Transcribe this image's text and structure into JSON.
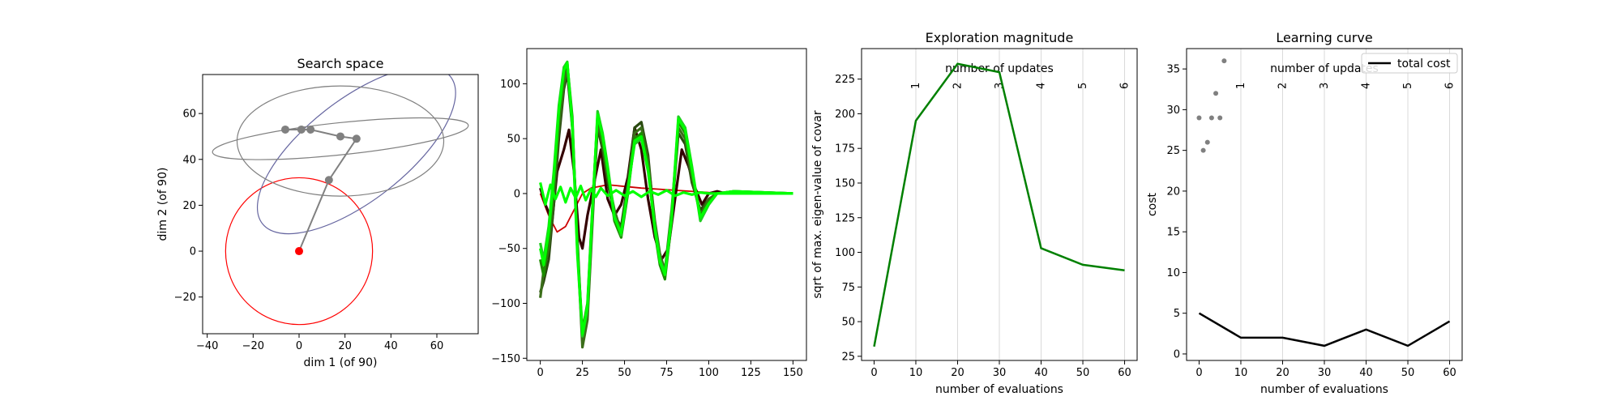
{
  "chart_data": [
    {
      "type": "scatter",
      "title": "Search space",
      "xlabel": "dim 1 (of 90)",
      "ylabel": "dim 2 (of 90)",
      "xlim": [
        -42,
        78
      ],
      "ylim": [
        -36,
        77
      ],
      "xticks": [
        -40,
        -20,
        0,
        20,
        40,
        60
      ],
      "yticks": [
        -20,
        0,
        20,
        40,
        60
      ],
      "initial_mean": [
        0,
        0
      ],
      "mean_path": [
        [
          0,
          0
        ],
        [
          13,
          31
        ],
        [
          25,
          49
        ],
        [
          18,
          50
        ],
        [
          5,
          53
        ],
        [
          1,
          53
        ],
        [
          -6,
          53
        ]
      ],
      "covariance_ellipses": [
        {
          "center": [
            0,
            0
          ],
          "rx": 32,
          "ry": 32,
          "angle": 0,
          "color": "#ff0000"
        },
        {
          "center": [
            25,
            44
          ],
          "rx": 52,
          "ry": 22,
          "angle": 38,
          "color": "#6666a0"
        },
        {
          "center": [
            18,
            48
          ],
          "rx": 45,
          "ry": 24,
          "angle": 0,
          "color": "#808080"
        },
        {
          "center": [
            18,
            49
          ],
          "rx": 56,
          "ry": 7,
          "angle": 6,
          "color": "#808080"
        }
      ],
      "colors": {
        "initial": "#ff0000",
        "updates": "#808080",
        "first_update": "#6666a0"
      }
    },
    {
      "type": "line",
      "title": "",
      "xlim": [
        -8,
        158
      ],
      "ylim": [
        -152,
        132
      ],
      "xticks": [
        0,
        25,
        50,
        75,
        100,
        125,
        150
      ],
      "yticks": [
        -150,
        -100,
        -50,
        0,
        50,
        100
      ],
      "x_range": [
        0,
        150
      ],
      "series_colors": [
        "#cc0000",
        "#330000",
        "#2a4a10",
        "#3b6e1a",
        "#1c8c00",
        "#22cc22",
        "#00ff00"
      ],
      "series": [
        {
          "x": [
            0,
            5,
            10,
            15,
            20,
            25,
            30,
            40,
            60,
            80,
            100,
            150
          ],
          "values": [
            0,
            -20,
            -35,
            -30,
            -15,
            0,
            5,
            8,
            5,
            3,
            1,
            0
          ]
        },
        {
          "x": [
            0,
            3,
            7,
            10,
            14,
            17,
            20,
            23,
            25,
            28,
            32,
            36,
            40,
            44,
            48,
            52,
            56,
            60,
            64,
            68,
            72,
            76,
            80,
            84,
            88,
            92,
            96,
            100,
            105,
            110,
            150
          ],
          "values": [
            5,
            -10,
            -25,
            20,
            40,
            58,
            20,
            -40,
            -50,
            -20,
            10,
            40,
            -5,
            -20,
            -10,
            15,
            60,
            40,
            -5,
            -40,
            -60,
            -50,
            -5,
            40,
            25,
            5,
            -10,
            0,
            2,
            0,
            0
          ]
        },
        {
          "x": [
            0,
            2,
            5,
            8,
            11,
            14,
            16,
            19,
            22,
            25,
            28,
            31,
            34,
            37,
            40,
            44,
            48,
            52,
            56,
            60,
            64,
            68,
            71,
            74,
            78,
            82,
            86,
            90,
            95,
            100,
            105,
            115,
            150
          ],
          "values": [
            -90,
            -80,
            -60,
            -10,
            50,
            95,
            110,
            60,
            -40,
            -135,
            -110,
            -20,
            60,
            40,
            10,
            -20,
            -30,
            10,
            60,
            65,
            35,
            -30,
            -60,
            -75,
            -20,
            55,
            45,
            10,
            -15,
            -5,
            0,
            2,
            0
          ]
        },
        {
          "x": [
            0,
            2,
            5,
            8,
            11,
            14,
            16,
            19,
            22,
            25,
            28,
            31,
            34,
            37,
            40,
            44,
            48,
            52,
            56,
            60,
            64,
            68,
            71,
            74,
            78,
            82,
            86,
            90,
            95,
            100,
            105,
            115,
            150
          ],
          "values": [
            -95,
            -70,
            -50,
            0,
            60,
            100,
            115,
            65,
            -45,
            -140,
            -115,
            -25,
            65,
            45,
            15,
            -15,
            -35,
            5,
            55,
            60,
            30,
            -25,
            -55,
            -70,
            -15,
            60,
            50,
            15,
            -20,
            -5,
            0,
            1,
            0
          ]
        },
        {
          "x": [
            0,
            2,
            5,
            8,
            11,
            14,
            16,
            19,
            22,
            25,
            28,
            31,
            34,
            37,
            40,
            44,
            48,
            52,
            56,
            60,
            64,
            68,
            71,
            74,
            78,
            82,
            86,
            90,
            95,
            100,
            105,
            115,
            150
          ],
          "values": [
            -60,
            -75,
            -40,
            10,
            70,
            110,
            118,
            70,
            -50,
            -125,
            -100,
            -10,
            70,
            50,
            20,
            -25,
            -40,
            0,
            50,
            55,
            25,
            -35,
            -65,
            -78,
            -25,
            65,
            55,
            20,
            -20,
            -8,
            0,
            2,
            0
          ]
        },
        {
          "x": [
            0,
            2,
            5,
            8,
            11,
            14,
            16,
            19,
            22,
            25,
            28,
            31,
            34,
            37,
            40,
            44,
            48,
            52,
            56,
            60,
            64,
            68,
            71,
            74,
            78,
            82,
            86,
            90,
            95,
            100,
            105,
            115,
            150
          ],
          "values": [
            -45,
            -60,
            -30,
            20,
            80,
            115,
            120,
            60,
            -55,
            -130,
            -105,
            -15,
            75,
            55,
            25,
            -20,
            -38,
            5,
            45,
            50,
            20,
            -30,
            -60,
            -72,
            -20,
            70,
            60,
            25,
            -25,
            -10,
            0,
            1,
            0
          ]
        },
        {
          "x": [
            0,
            2,
            5,
            8,
            11,
            14,
            16,
            19,
            22,
            25,
            28,
            31,
            34,
            37,
            40,
            44,
            48,
            52,
            56,
            60,
            64,
            68,
            71,
            74,
            78,
            82,
            86,
            90,
            95,
            100,
            105,
            115,
            150
          ],
          "values": [
            -50,
            -65,
            -35,
            15,
            75,
            112,
            119,
            65,
            -52,
            -128,
            -102,
            -12,
            72,
            52,
            22,
            -22,
            -36,
            3,
            48,
            52,
            22,
            -32,
            -62,
            -74,
            -22,
            68,
            58,
            22,
            -22,
            -9,
            0,
            2,
            0
          ]
        },
        {
          "x": [
            0,
            3,
            6,
            9,
            12,
            15,
            18,
            21,
            24,
            27,
            30,
            33,
            36,
            40,
            45,
            50,
            55,
            60,
            65,
            70,
            75,
            80,
            85,
            90,
            95,
            100,
            150
          ],
          "values": [
            10,
            -10,
            8,
            -5,
            6,
            -8,
            5,
            -4,
            7,
            -6,
            4,
            -3,
            5,
            -2,
            3,
            -2,
            2,
            -3,
            2,
            -1,
            3,
            -2,
            1,
            -1,
            1,
            0,
            0
          ]
        }
      ]
    },
    {
      "type": "line",
      "title": "Exploration magnitude",
      "xlabel": "number of evaluations",
      "ylabel": "sqrt of max. eigen-value of covar",
      "top_axis_label": "number of updates",
      "update_ticks": [
        {
          "x": 10,
          "label": "1"
        },
        {
          "x": 20,
          "label": "2"
        },
        {
          "x": 30,
          "label": "3"
        },
        {
          "x": 40,
          "label": "4"
        },
        {
          "x": 50,
          "label": "5"
        },
        {
          "x": 60,
          "label": "6"
        }
      ],
      "xlim": [
        -3,
        63
      ],
      "ylim": [
        22,
        247
      ],
      "xticks": [
        0,
        10,
        20,
        30,
        40,
        50,
        60
      ],
      "yticks": [
        25,
        50,
        75,
        100,
        125,
        150,
        175,
        200,
        225
      ],
      "grid": true,
      "x": [
        0,
        10,
        20,
        30,
        40,
        50,
        60
      ],
      "values": [
        32,
        195,
        236,
        230,
        103,
        91,
        87
      ],
      "color": "#008000"
    },
    {
      "type": "line",
      "title": "Learning curve",
      "xlabel": "number of evaluations",
      "ylabel": "cost",
      "top_axis_label": "number of updates",
      "update_ticks": [
        {
          "x": 10,
          "label": "1"
        },
        {
          "x": 20,
          "label": "2"
        },
        {
          "x": 30,
          "label": "3"
        },
        {
          "x": 40,
          "label": "4"
        },
        {
          "x": 50,
          "label": "5"
        },
        {
          "x": 60,
          "label": "6"
        }
      ],
      "xlim": [
        -3,
        63
      ],
      "ylim": [
        -0.8,
        37.5
      ],
      "xticks": [
        0,
        10,
        20,
        30,
        40,
        50,
        60
      ],
      "yticks": [
        0,
        5,
        10,
        15,
        20,
        25,
        30,
        35
      ],
      "grid": true,
      "legend": {
        "label": "total cost",
        "placement": "top-right"
      },
      "total_cost": {
        "x": [
          0,
          10,
          20,
          30,
          40,
          50,
          60
        ],
        "values": [
          5,
          2,
          2,
          1,
          3,
          1,
          4
        ],
        "color": "#000000"
      },
      "samples": {
        "x": [
          0,
          1,
          2,
          3,
          4,
          5,
          6
        ],
        "values": [
          29,
          25,
          26,
          29,
          32,
          29,
          36
        ],
        "color": "#808080"
      }
    }
  ]
}
